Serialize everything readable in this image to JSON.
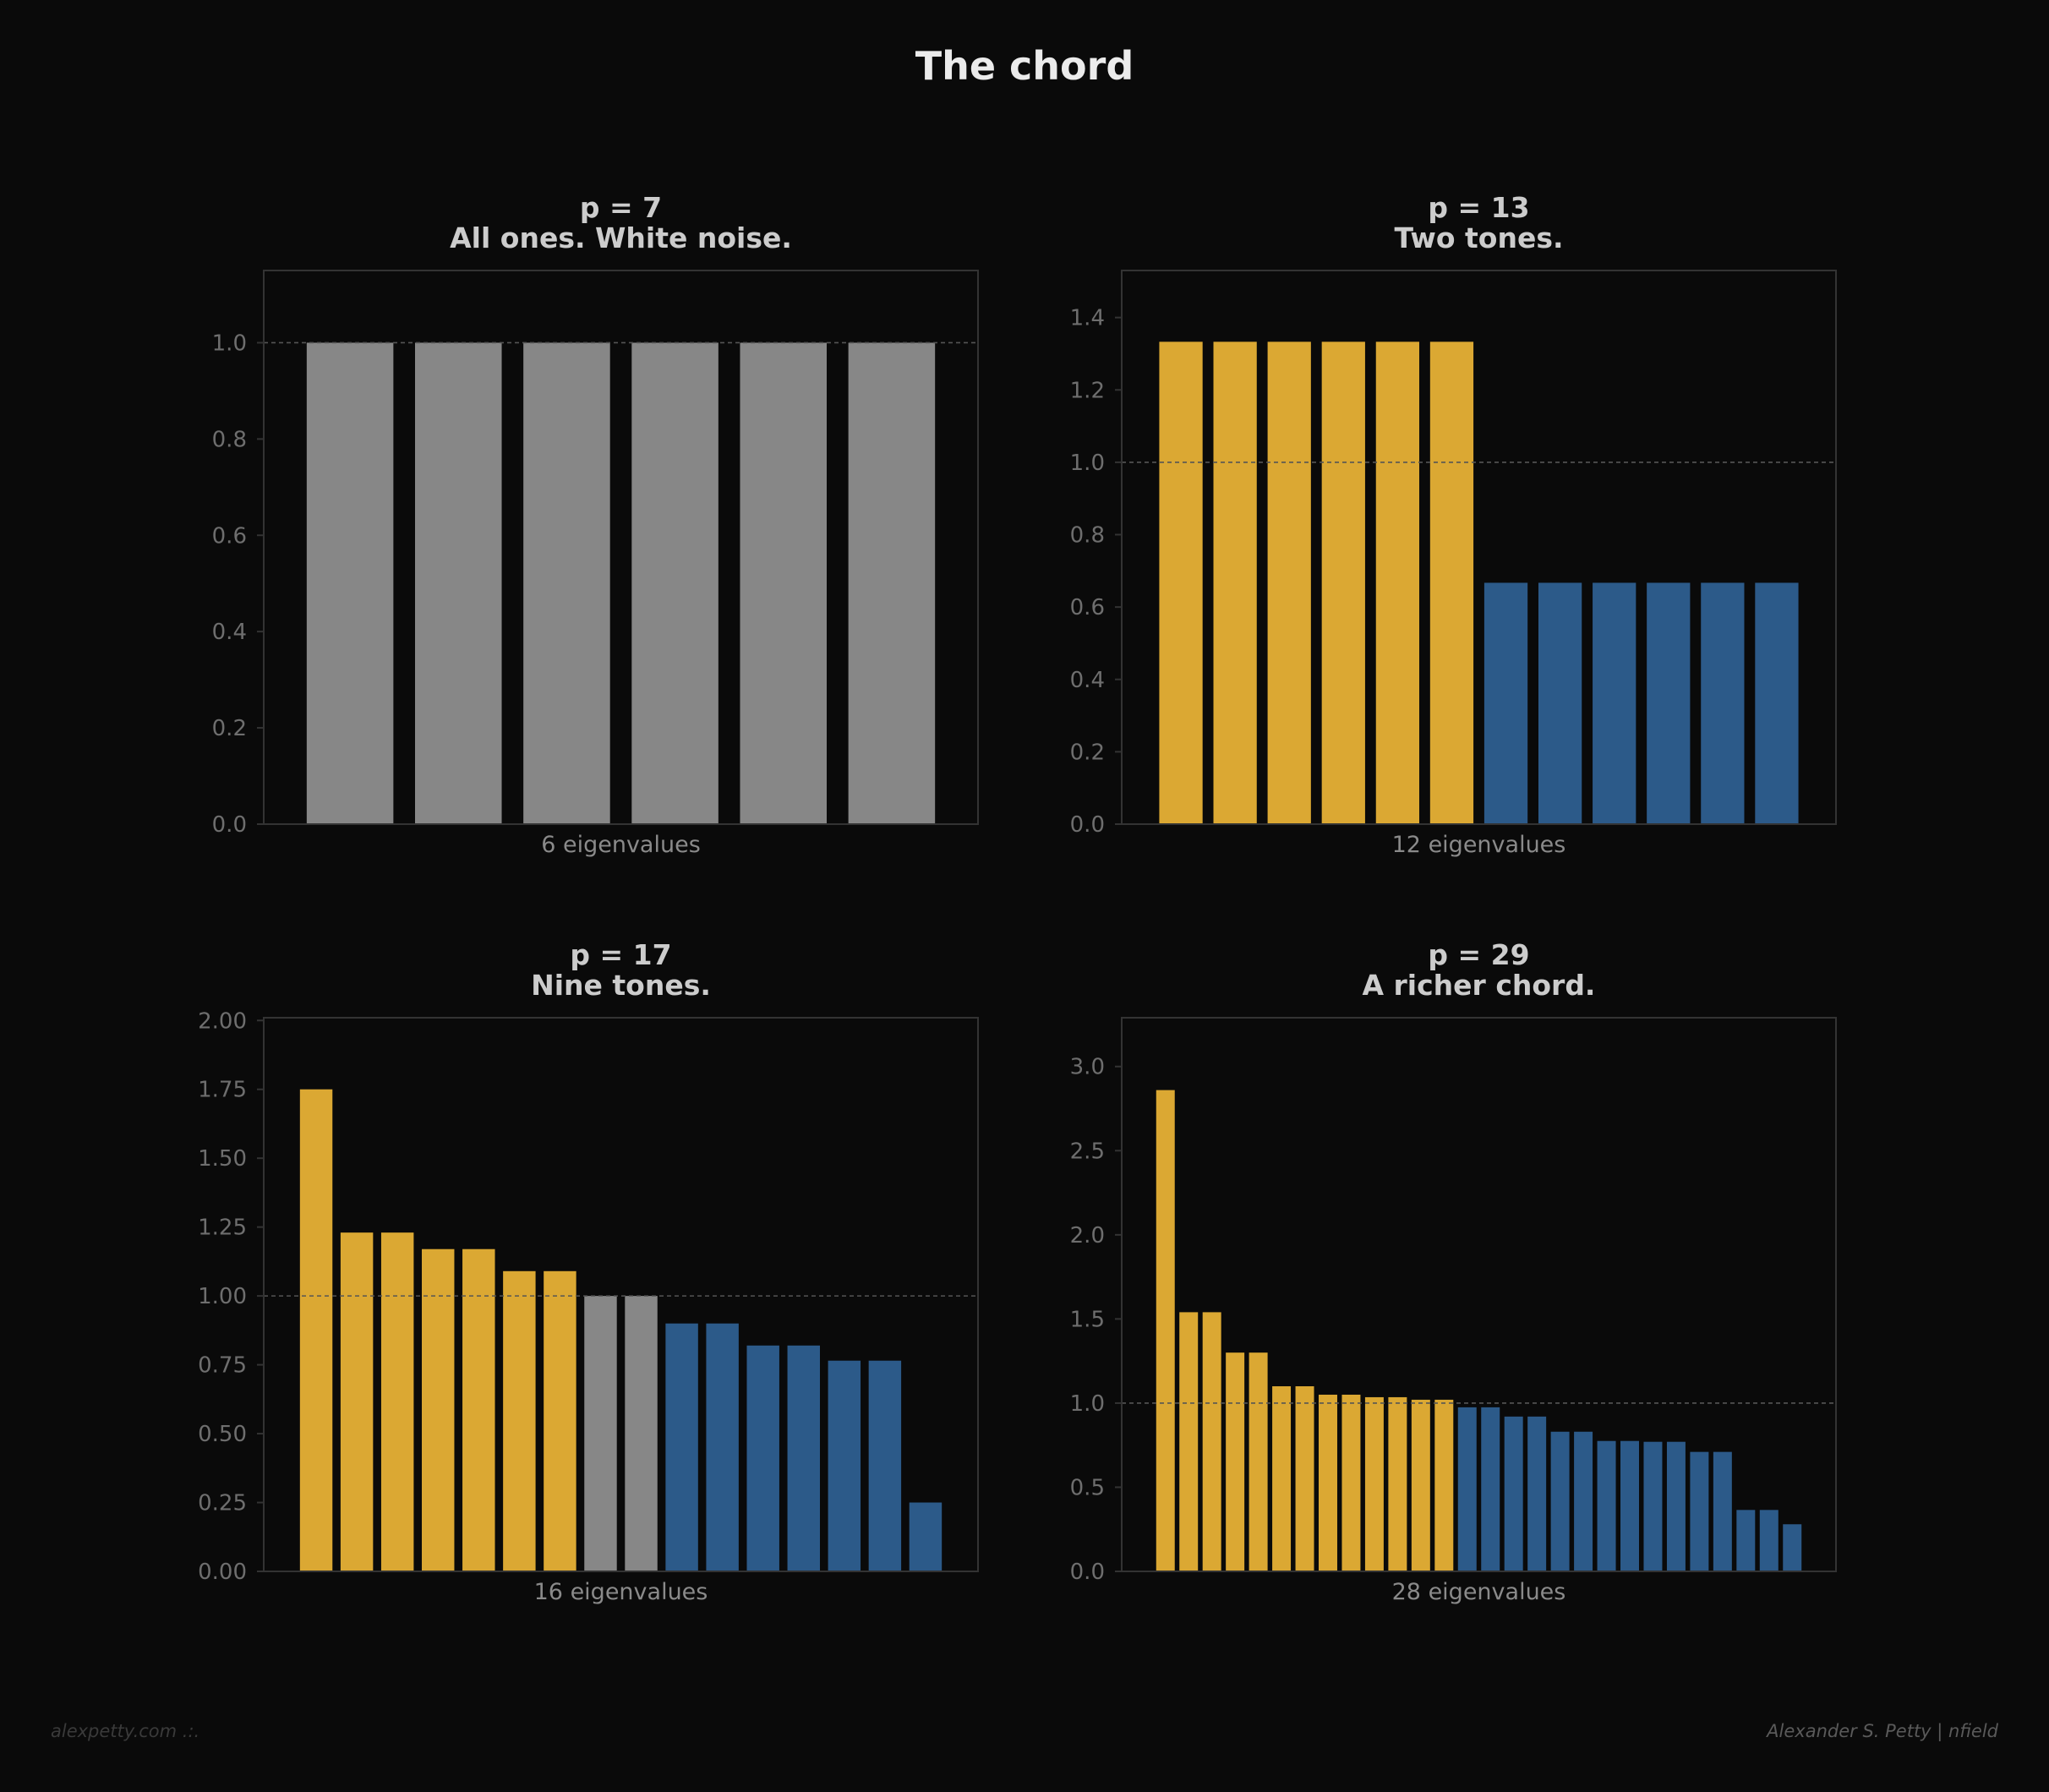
{
  "figure": {
    "title": "The chord"
  },
  "colors": {
    "background": "#0a0a0a",
    "gold": "#dba833",
    "blue": "#2c5a89",
    "gray": "#878787",
    "axis_text": "#6e6e6e",
    "title_text": "#cccccc",
    "frame": "#333333",
    "reference_line": "#555555"
  },
  "chart_data": [
    {
      "type": "bar",
      "title": "p = 7",
      "subtitle": "All ones. White noise.",
      "xlabel": "6 eigenvalues",
      "ylabel": "",
      "ylim": [
        0,
        1.15
      ],
      "yticks": [
        "0.0",
        "0.2",
        "0.4",
        "0.6",
        "0.8",
        "1.0"
      ],
      "reference_line": 1.0,
      "grid": false,
      "values": [
        1.0,
        1.0,
        1.0,
        1.0,
        1.0,
        1.0
      ],
      "bar_colors": [
        "gray",
        "gray",
        "gray",
        "gray",
        "gray",
        "gray"
      ]
    },
    {
      "type": "bar",
      "title": "p = 13",
      "subtitle": "Two tones.",
      "xlabel": "12 eigenvalues",
      "ylabel": "",
      "ylim": [
        0,
        1.53
      ],
      "yticks": [
        "0.0",
        "0.2",
        "0.4",
        "0.6",
        "0.8",
        "1.0",
        "1.2",
        "1.4"
      ],
      "reference_line": 1.0,
      "grid": false,
      "values": [
        1.333,
        1.333,
        1.333,
        1.333,
        1.333,
        1.333,
        0.667,
        0.667,
        0.667,
        0.667,
        0.667,
        0.667
      ],
      "bar_colors": [
        "gold",
        "gold",
        "gold",
        "gold",
        "gold",
        "gold",
        "blue",
        "blue",
        "blue",
        "blue",
        "blue",
        "blue"
      ]
    },
    {
      "type": "bar",
      "title": "p = 17",
      "subtitle": "Nine tones.",
      "xlabel": "16 eigenvalues",
      "ylabel": "",
      "ylim": [
        0,
        2.01
      ],
      "yticks": [
        "0.00",
        "0.25",
        "0.50",
        "0.75",
        "1.00",
        "1.25",
        "1.50",
        "1.75",
        "2.00"
      ],
      "reference_line": 1.0,
      "grid": false,
      "values": [
        1.75,
        1.23,
        1.23,
        1.17,
        1.17,
        1.09,
        1.09,
        1.0,
        1.0,
        0.9,
        0.9,
        0.82,
        0.82,
        0.765,
        0.765,
        0.25
      ],
      "bar_colors": [
        "gold",
        "gold",
        "gold",
        "gold",
        "gold",
        "gold",
        "gold",
        "gray",
        "gray",
        "blue",
        "blue",
        "blue",
        "blue",
        "blue",
        "blue",
        "blue"
      ]
    },
    {
      "type": "bar",
      "title": "p = 29",
      "subtitle": "A richer chord.",
      "xlabel": "28 eigenvalues",
      "ylabel": "",
      "ylim": [
        0,
        3.29
      ],
      "yticks": [
        "0.0",
        "0.5",
        "1.0",
        "1.5",
        "2.0",
        "2.5",
        "3.0"
      ],
      "reference_line": 1.0,
      "grid": false,
      "values": [
        2.86,
        1.54,
        1.54,
        1.3,
        1.3,
        1.1,
        1.1,
        1.05,
        1.05,
        1.035,
        1.035,
        1.02,
        1.02,
        0.975,
        0.975,
        0.92,
        0.92,
        0.83,
        0.83,
        0.775,
        0.775,
        0.77,
        0.77,
        0.71,
        0.71,
        0.365,
        0.365,
        0.28
      ],
      "bar_colors": [
        "gold",
        "gold",
        "gold",
        "gold",
        "gold",
        "gold",
        "gold",
        "gold",
        "gold",
        "gold",
        "gold",
        "gold",
        "gold",
        "blue",
        "blue",
        "blue",
        "blue",
        "blue",
        "blue",
        "blue",
        "blue",
        "blue",
        "blue",
        "blue",
        "blue",
        "blue",
        "blue",
        "blue"
      ]
    }
  ],
  "footer": {
    "left": "alexpetty.com  .:.",
    "right": "Alexander S. Petty  |  nfield"
  }
}
